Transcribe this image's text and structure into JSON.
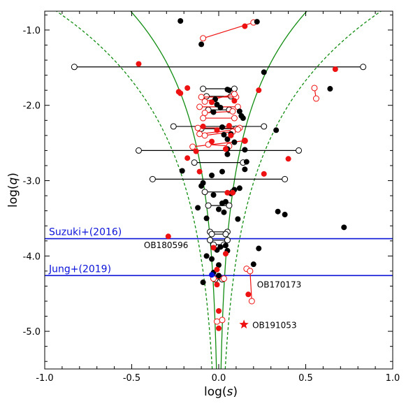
{
  "chart_data": {
    "type": "scatter",
    "xlabel_prefix": "log(",
    "xlabel_var": "s",
    "xlabel_suffix": ")",
    "ylabel_prefix": "log(",
    "ylabel_var": "q",
    "ylabel_suffix": ")",
    "xlim": [
      -1.0,
      1.0
    ],
    "ylim": [
      -5.5,
      -0.75
    ],
    "xticks": [
      -1.0,
      -0.5,
      0.0,
      0.5,
      1.0
    ],
    "xtick_labels": [
      "-1.0",
      "-0.5",
      "0.0",
      "0.5",
      "1.0"
    ],
    "yticks": [
      -1.0,
      -2.0,
      -3.0,
      -4.0,
      -5.0
    ],
    "ytick_labels": [
      "-1.0",
      "-2.0",
      "-3.0",
      "-4.0",
      "-5.0"
    ],
    "grid": false,
    "colors": {
      "black": "#000000",
      "red": "#ee1111",
      "blue": "#0a12d8",
      "green": "#108c10"
    },
    "caustic_boundaries": {
      "resonant_solid": {
        "color": "#108c10",
        "style": "solid",
        "log_q": -5.5,
        "note": "boundary curves"
      },
      "wide_close_dashed": {
        "color": "#108c10",
        "style": "dashed"
      }
    },
    "survey_limits": [
      {
        "name": "Suzuki+(2016)",
        "log_q": -3.77
      },
      {
        "name": "Jung+(2019)",
        "log_q": -4.26
      }
    ],
    "filled_black": [
      [
        -0.22,
        -0.88
      ],
      [
        0.22,
        -0.89
      ],
      [
        -0.1,
        -1.19
      ],
      [
        0.26,
        -1.56
      ],
      [
        0.64,
        -1.78
      ],
      [
        0.05,
        -1.79
      ],
      [
        0.06,
        -1.8
      ],
      [
        -0.02,
        -1.92
      ],
      [
        -0.01,
        -1.99
      ],
      [
        0.01,
        -2.03
      ],
      [
        -0.03,
        -2.09
      ],
      [
        0.12,
        -2.08
      ],
      [
        0.13,
        -2.14
      ],
      [
        0.14,
        -2.17
      ],
      [
        0.02,
        -2.29
      ],
      [
        0.33,
        -2.33
      ],
      [
        0.03,
        -2.39
      ],
      [
        0.07,
        -2.38
      ],
      [
        0.05,
        -2.45
      ],
      [
        0.09,
        -2.49
      ],
      [
        0.05,
        -2.58
      ],
      [
        0.15,
        -2.59
      ],
      [
        0.05,
        -2.65
      ],
      [
        0.16,
        -2.75
      ],
      [
        0.15,
        -2.85
      ],
      [
        -0.21,
        -2.87
      ],
      [
        0.02,
        -2.88
      ],
      [
        -0.04,
        -2.93
      ],
      [
        -0.09,
        -3.03
      ],
      [
        -0.1,
        -3.07
      ],
      [
        0.09,
        -3.12
      ],
      [
        0.12,
        -3.1
      ],
      [
        0.07,
        -3.17
      ],
      [
        -0.03,
        -3.19
      ],
      [
        0.02,
        -3.3
      ],
      [
        0.04,
        -3.28
      ],
      [
        -0.12,
        -3.36
      ],
      [
        0.0,
        -3.38
      ],
      [
        0.03,
        -3.42
      ],
      [
        0.34,
        -3.41
      ],
      [
        0.38,
        -3.45
      ],
      [
        -0.07,
        -3.5
      ],
      [
        0.11,
        -3.51
      ],
      [
        0.72,
        -3.62
      ],
      [
        0.01,
        -3.88
      ],
      [
        0.04,
        -3.86
      ],
      [
        0.23,
        -3.9
      ],
      [
        -0.01,
        -3.92
      ],
      [
        0.05,
        -3.93
      ],
      [
        -0.07,
        -4.0
      ],
      [
        -0.04,
        -4.04
      ],
      [
        0.0,
        -4.12
      ],
      [
        0.2,
        -4.11
      ],
      [
        -0.03,
        -4.22
      ],
      [
        0.0,
        -4.26
      ],
      [
        -0.09,
        -4.35
      ]
    ],
    "filled_red": [
      [
        0.15,
        -0.95
      ],
      [
        -0.46,
        -1.45
      ],
      [
        0.67,
        -1.52
      ],
      [
        -0.23,
        -1.82
      ],
      [
        -0.22,
        -1.84
      ],
      [
        -0.18,
        -1.77
      ],
      [
        0.23,
        -1.8
      ],
      [
        -0.04,
        -1.96
      ],
      [
        0.09,
        -1.94
      ],
      [
        -0.09,
        -2.28
      ],
      [
        0.06,
        -2.27
      ],
      [
        -0.01,
        -2.33
      ],
      [
        0.07,
        -2.4
      ],
      [
        0.15,
        -2.47
      ],
      [
        -0.04,
        -2.48
      ],
      [
        0.04,
        -2.58
      ],
      [
        -0.13,
        -2.61
      ],
      [
        -0.18,
        -2.7
      ],
      [
        0.4,
        -2.71
      ],
      [
        0.26,
        -2.91
      ],
      [
        -0.11,
        -2.88
      ],
      [
        0.05,
        -3.16
      ],
      [
        0.08,
        -3.16
      ],
      [
        -0.29,
        -3.74
      ],
      [
        -0.03,
        -3.89
      ],
      [
        0.04,
        -3.97
      ],
      [
        -0.01,
        -4.18
      ],
      [
        0.17,
        -4.51
      ],
      [
        -0.01,
        -4.38
      ],
      [
        0.0,
        -4.73
      ],
      [
        0.0,
        -4.96
      ]
    ],
    "segments_black": [
      {
        "from": [
          -0.83,
          -1.49
        ],
        "to": [
          0.83,
          -1.49
        ]
      },
      {
        "from": [
          -0.26,
          -2.28
        ],
        "to": [
          0.26,
          -2.28
        ]
      },
      {
        "from": [
          -0.46,
          -2.6
        ],
        "to": [
          0.46,
          -2.6
        ]
      },
      {
        "from": [
          -0.38,
          -2.98
        ],
        "to": [
          0.38,
          -2.98
        ]
      },
      {
        "from": [
          -0.1,
          -2.31
        ],
        "to": [
          0.1,
          -2.31
        ]
      },
      {
        "from": [
          -0.14,
          -2.76
        ],
        "to": [
          0.14,
          -2.76
        ]
      },
      {
        "from": [
          -0.08,
          -3.15
        ],
        "to": [
          0.08,
          -3.15
        ]
      },
      {
        "from": [
          -0.06,
          -3.33
        ],
        "to": [
          0.06,
          -3.33
        ]
      },
      {
        "from": [
          -0.05,
          -3.68
        ],
        "to": [
          0.05,
          -3.68
        ]
      },
      {
        "from": [
          -0.04,
          -3.71
        ],
        "to": [
          0.04,
          -3.71
        ]
      },
      {
        "from": [
          -0.05,
          -3.79
        ],
        "to": [
          0.05,
          -3.79
        ]
      },
      {
        "from": [
          -0.03,
          -3.85
        ],
        "to": [
          0.03,
          -3.85
        ]
      },
      {
        "from": [
          -0.02,
          -4.31
        ],
        "to": [
          0.02,
          -4.31
        ]
      },
      {
        "from": [
          -0.09,
          -1.78
        ],
        "to": [
          0.09,
          -1.78
        ]
      },
      {
        "from": [
          -0.07,
          -1.88
        ],
        "to": [
          0.07,
          -1.88
        ]
      },
      {
        "from": [
          -0.06,
          -2.06
        ],
        "to": [
          0.06,
          -2.06
        ]
      }
    ],
    "segments_red": [
      {
        "from": [
          -0.09,
          -1.11
        ],
        "to": [
          0.2,
          -0.9
        ]
      },
      {
        "from": [
          0.55,
          -1.77
        ],
        "to": [
          0.56,
          -1.91
        ]
      },
      {
        "from": [
          -0.1,
          -1.89
        ],
        "to": [
          0.1,
          -1.89
        ]
      },
      {
        "from": [
          -0.08,
          -1.95
        ],
        "to": [
          0.09,
          -1.85
        ]
      },
      {
        "from": [
          -0.11,
          -2.02
        ],
        "to": [
          0.11,
          -2.02
        ]
      },
      {
        "from": [
          -0.08,
          -2.1
        ],
        "to": [
          0.08,
          -2.08
        ]
      },
      {
        "from": [
          -0.09,
          -2.17
        ],
        "to": [
          0.09,
          -2.17
        ]
      },
      {
        "from": [
          -0.12,
          -2.3
        ],
        "to": [
          0.12,
          -2.3
        ]
      },
      {
        "from": [
          -0.11,
          -2.38
        ],
        "to": [
          0.11,
          -2.32
        ]
      },
      {
        "from": [
          -0.08,
          -2.4
        ],
        "to": [
          0.08,
          -2.35
        ]
      },
      {
        "from": [
          -0.15,
          -2.55
        ],
        "to": [
          0.15,
          -2.47
        ]
      },
      {
        "from": [
          -0.06,
          -2.52
        ],
        "to": [
          0.06,
          -2.54
        ]
      },
      {
        "from": [
          -0.03,
          -4.3
        ],
        "to": [
          0.03,
          -4.3
        ]
      },
      {
        "from": [
          0.16,
          -4.17
        ],
        "to": [
          0.18,
          -4.2
        ]
      },
      {
        "from": [
          0.18,
          -4.2
        ],
        "to": [
          0.19,
          -4.6
        ]
      },
      {
        "from": [
          -0.01,
          -4.87
        ],
        "to": [
          0.02,
          -4.85
        ]
      }
    ],
    "filled_blue": [
      [
        -0.04,
        -4.25
      ]
    ],
    "star_red": {
      "x": 0.145,
      "y": -4.91,
      "label": "OB191053"
    },
    "event_labels": [
      {
        "text": "OB180596",
        "x": -0.43,
        "y": -3.86
      },
      {
        "text": "OB170173",
        "x": 0.22,
        "y": -4.38
      }
    ]
  }
}
